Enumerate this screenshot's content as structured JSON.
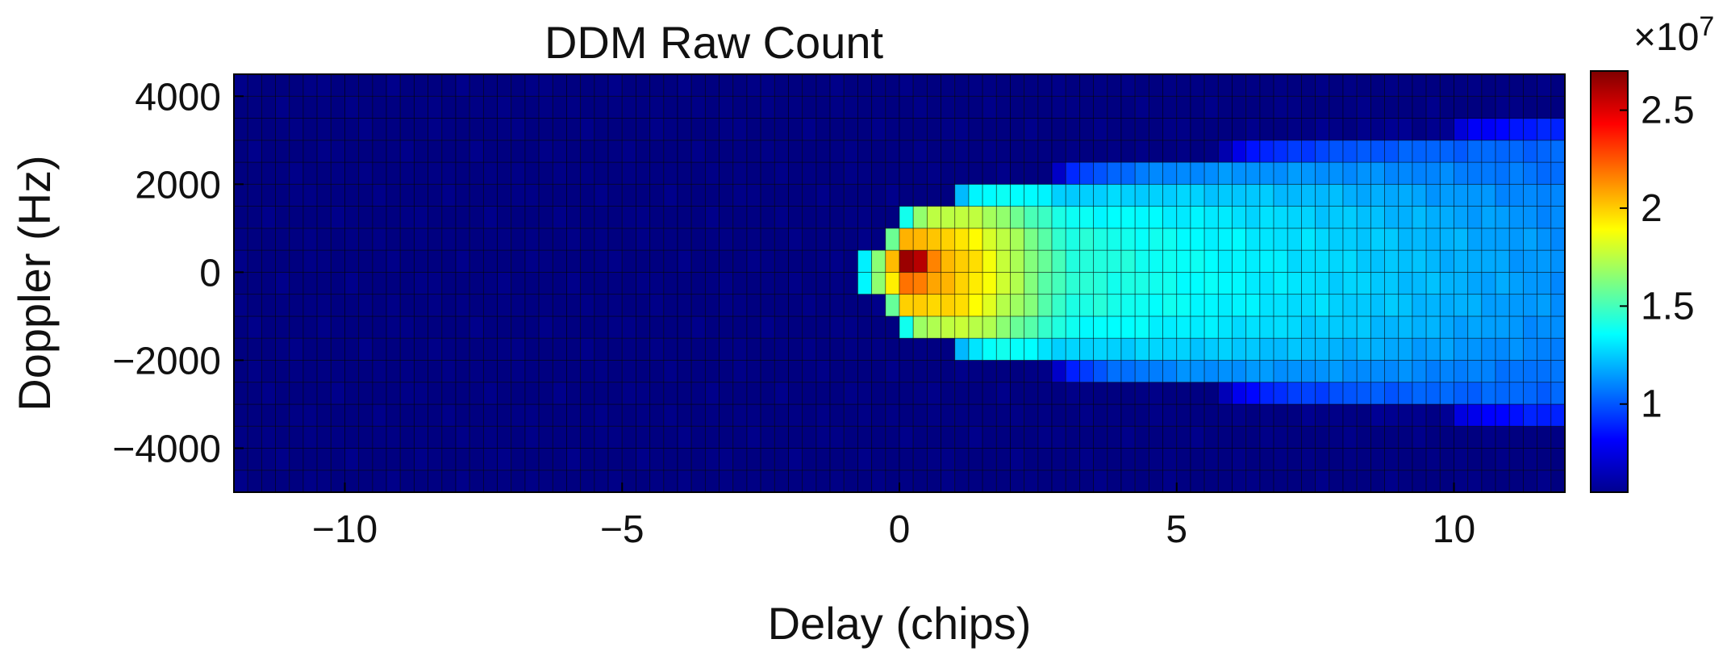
{
  "chart_data": {
    "type": "heatmap",
    "title": "DDM Raw Count",
    "xlabel": "Delay (chips)",
    "ylabel": "Doppler (Hz)",
    "xlim": [
      -12,
      12
    ],
    "ylim": [
      -5000,
      4500
    ],
    "xticks": [
      -10,
      -5,
      0,
      5,
      10
    ],
    "xtick_labels": [
      "−10",
      "−5",
      "0",
      "5",
      "10"
    ],
    "yticks": [
      4000,
      2000,
      0,
      -2000,
      -4000
    ],
    "ytick_labels": [
      "4000",
      "2000",
      "0",
      "−2000",
      "−4000"
    ],
    "colorbar": {
      "min": 0.55,
      "max": 2.7,
      "ticks": [
        1,
        1.5,
        2,
        2.5
      ],
      "tick_labels": [
        "1",
        "1.5",
        "2",
        "2.5"
      ],
      "multiplier": "×10",
      "multiplier_exp": "7",
      "colormap": "jet"
    },
    "grid": "cell-edges",
    "cells": {
      "delay_min": -12,
      "delay_max": 12,
      "delay_step": 0.25,
      "doppler_min": -5000,
      "doppler_max": 4500,
      "doppler_step": 500
    },
    "features": {
      "peak": {
        "delay": 0.25,
        "doppler": 250,
        "value": 2.7
      },
      "background": 0.55,
      "trail_level_near": 1.25,
      "trail_level_far": 1.1
    }
  }
}
